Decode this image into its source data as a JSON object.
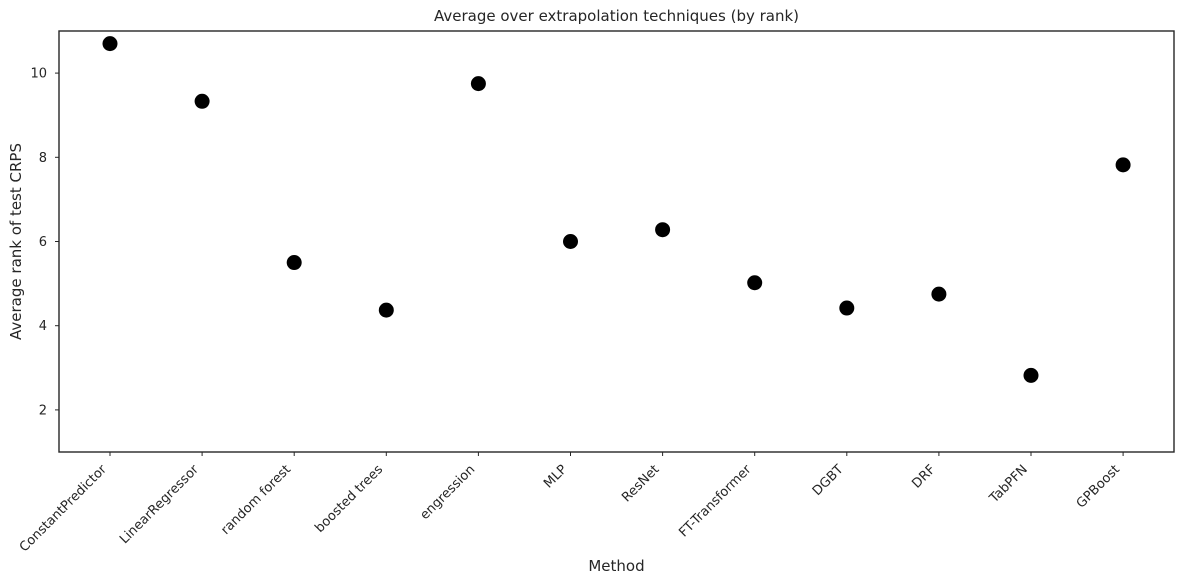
{
  "chart_data": {
    "type": "scatter",
    "title": "Average over extrapolation techniques (by rank)",
    "xlabel": "Method",
    "ylabel": "Average rank of test CRPS",
    "categories": [
      "ConstantPredictor",
      "LinearRegressor",
      "random forest",
      "boosted trees",
      "engression",
      "MLP",
      "ResNet",
      "FT-Transformer",
      "DGBT",
      "DRF",
      "TabPFN",
      "GPBoost"
    ],
    "values": [
      10.7,
      9.33,
      5.5,
      4.37,
      9.75,
      6.0,
      6.28,
      5.02,
      4.42,
      4.75,
      2.82,
      7.82
    ],
    "ylim": [
      1.0,
      11.0
    ],
    "yticks": [
      2,
      4,
      6,
      8,
      10
    ],
    "grid": false,
    "marker_color": "#000000"
  }
}
